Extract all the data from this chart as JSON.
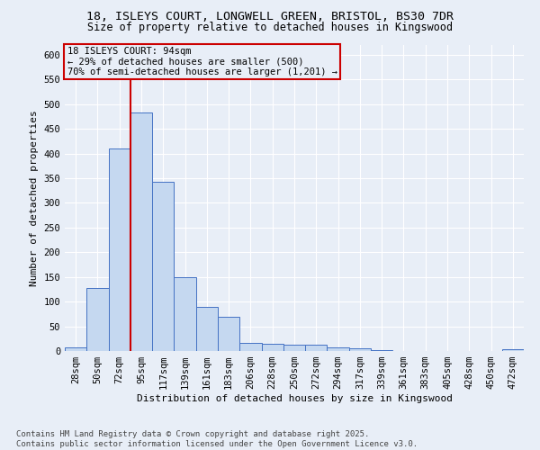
{
  "title_line1": "18, ISLEYS COURT, LONGWELL GREEN, BRISTOL, BS30 7DR",
  "title_line2": "Size of property relative to detached houses in Kingswood",
  "xlabel": "Distribution of detached houses by size in Kingswood",
  "ylabel": "Number of detached properties",
  "bins": [
    "28sqm",
    "50sqm",
    "72sqm",
    "95sqm",
    "117sqm",
    "139sqm",
    "161sqm",
    "183sqm",
    "206sqm",
    "228sqm",
    "250sqm",
    "272sqm",
    "294sqm",
    "317sqm",
    "339sqm",
    "361sqm",
    "383sqm",
    "405sqm",
    "428sqm",
    "450sqm",
    "472sqm"
  ],
  "values": [
    8,
    128,
    410,
    483,
    342,
    150,
    90,
    70,
    17,
    14,
    13,
    13,
    7,
    5,
    2,
    0,
    0,
    0,
    0,
    0,
    3
  ],
  "bar_color": "#c5d8f0",
  "bar_edge_color": "#4472c4",
  "vline_x_index": 3.0,
  "vline_color": "#cc0000",
  "annotation_text_line1": "18 ISLEYS COURT: 94sqm",
  "annotation_text_line2": "← 29% of detached houses are smaller (500)",
  "annotation_text_line3": "70% of semi-detached houses are larger (1,201) →",
  "annotation_box_color": "#cc0000",
  "ylim": [
    0,
    620
  ],
  "yticks": [
    0,
    50,
    100,
    150,
    200,
    250,
    300,
    350,
    400,
    450,
    500,
    550,
    600
  ],
  "background_color": "#e8eef7",
  "footer_line1": "Contains HM Land Registry data © Crown copyright and database right 2025.",
  "footer_line2": "Contains public sector information licensed under the Open Government Licence v3.0.",
  "title_fontsize": 9.5,
  "subtitle_fontsize": 8.5,
  "axis_label_fontsize": 8,
  "tick_fontsize": 7.5,
  "annotation_fontsize": 7.5,
  "footer_fontsize": 6.5
}
